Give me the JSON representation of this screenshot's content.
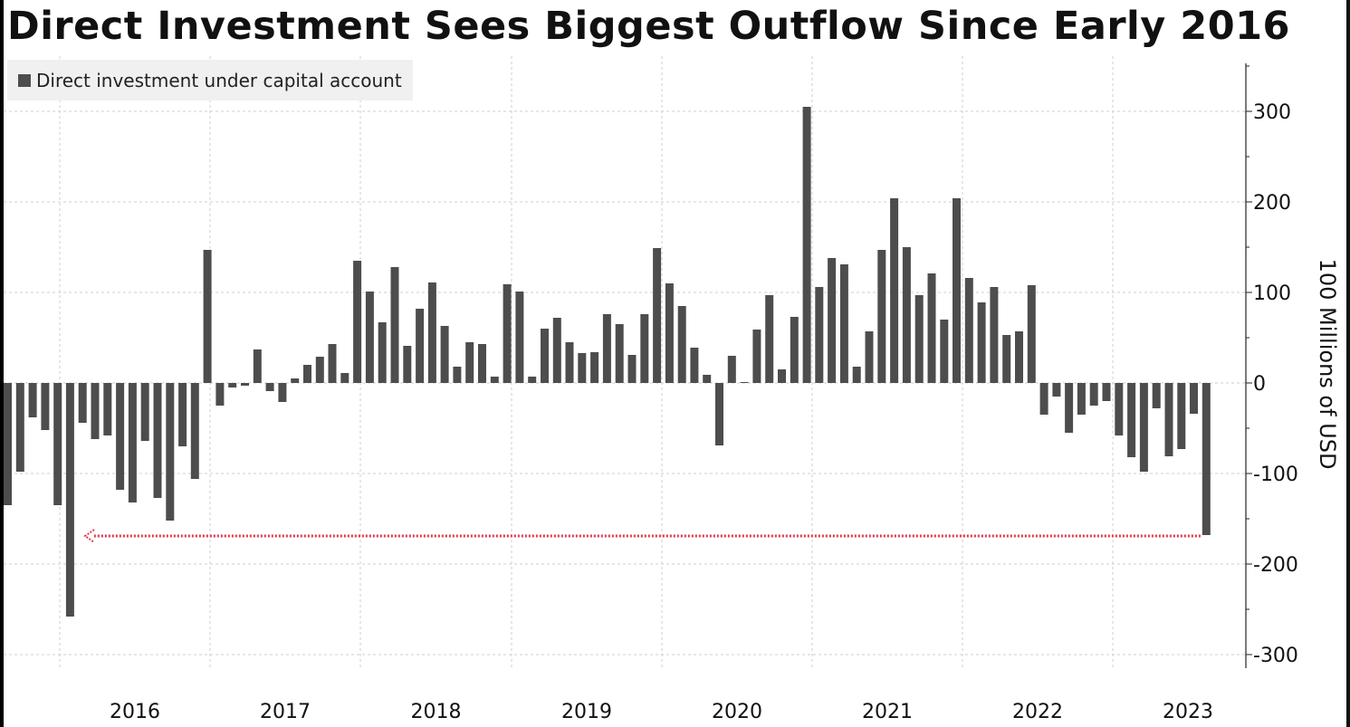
{
  "chart_data": {
    "type": "bar",
    "title": "Direct Investment Sees Biggest Outflow Since Early 2016",
    "series": [
      {
        "name": "Direct investment under capital account",
        "color": "#4d4d4d",
        "values": [
          -135,
          -98,
          -38,
          -52,
          -135,
          -258,
          -44,
          -62,
          -58,
          -118,
          -132,
          -64,
          -127,
          -152,
          -70,
          -106,
          147,
          -25,
          -5,
          -3,
          37,
          -9,
          -21,
          5,
          20,
          29,
          43,
          11,
          135,
          101,
          67,
          128,
          41,
          82,
          111,
          63,
          18,
          45,
          43,
          7,
          109,
          101,
          7,
          60,
          72,
          45,
          33,
          34,
          76,
          65,
          31,
          76,
          149,
          110,
          85,
          39,
          9,
          -69,
          30,
          1,
          59,
          97,
          15,
          73,
          305,
          106,
          138,
          131,
          18,
          57,
          147,
          204,
          150,
          97,
          121,
          70,
          204,
          116,
          89,
          106,
          53,
          57,
          108,
          -35,
          -15,
          -55,
          -35,
          -25,
          -20,
          -58,
          -82,
          -98,
          -28,
          -81,
          -73,
          -34,
          -168
        ]
      }
    ],
    "x_labels": [
      "2016",
      "2017",
      "2018",
      "2019",
      "2020",
      "2021",
      "2022",
      "2023"
    ],
    "ylabel": "100 Millions of USD",
    "ylim": [
      -310,
      350
    ],
    "yticks": [
      300,
      200,
      100,
      0,
      -100,
      -200,
      -300
    ],
    "ytick_labels": [
      "300",
      "200",
      "100",
      "0",
      "-100",
      "-200",
      "-300"
    ],
    "grid": true,
    "legend_position": "top-left",
    "annotation": {
      "type": "dotted-arrow",
      "color": "#e0394a",
      "value": -168,
      "description_from": "latest bar",
      "description_to": "early 2016"
    }
  }
}
